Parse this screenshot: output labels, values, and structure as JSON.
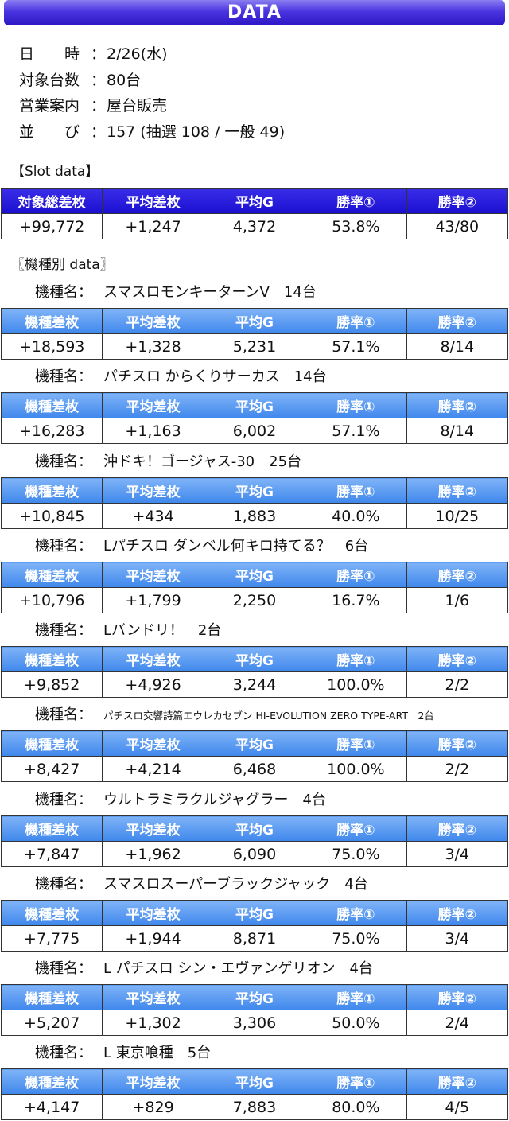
{
  "header": {
    "title": "DATA"
  },
  "info": [
    {
      "key": "日　　時",
      "value": "2/26(水)"
    },
    {
      "key": "対象台数",
      "value": "80台"
    },
    {
      "key": "営業案内",
      "value": "屋台販売"
    },
    {
      "key": "並　　び",
      "value": "157 (抽選 108 / 一般 49)"
    }
  ],
  "colon": "：",
  "slot_section": "【Slot data】",
  "slot_headers": [
    "対象総差枚",
    "平均差枚",
    "平均G",
    "勝率①",
    "勝率②"
  ],
  "slot_values": [
    "+99,772",
    "+1,247",
    "4,372",
    "53.8%",
    "43/80"
  ],
  "model_section": "〖機種別 data〗",
  "model_label": "機種名：",
  "model_headers": [
    "機種差枚",
    "平均差枚",
    "平均G",
    "勝率①",
    "勝率②"
  ],
  "models": [
    {
      "name": "スマスロモンキーターンV　14台",
      "values": [
        "+18,593",
        "+1,328",
        "5,231",
        "57.1%",
        "8/14"
      ]
    },
    {
      "name": "パチスロ からくりサーカス　14台",
      "values": [
        "+16,283",
        "+1,163",
        "6,002",
        "57.1%",
        "8/14"
      ]
    },
    {
      "name": "沖ドキ！ゴージャス-30　25台",
      "values": [
        "+10,845",
        "+434",
        "1,883",
        "40.0%",
        "10/25"
      ]
    },
    {
      "name": "Lパチスロ ダンベル何キロ持てる？　6台",
      "values": [
        "+10,796",
        "+1,799",
        "2,250",
        "16.7%",
        "1/6"
      ]
    },
    {
      "name": "Lバンドリ！　2台",
      "values": [
        "+9,852",
        "+4,926",
        "3,244",
        "100.0%",
        "2/2"
      ]
    },
    {
      "name": "パチスロ交響詩篇エウレカセブン HI-EVOLUTION ZERO TYPE-ART　2台",
      "values": [
        "+8,427",
        "+4,214",
        "6,468",
        "100.0%",
        "2/2"
      ]
    },
    {
      "name": "ウルトラミラクルジャグラー　4台",
      "values": [
        "+7,847",
        "+1,962",
        "6,090",
        "75.0%",
        "3/4"
      ]
    },
    {
      "name": "スマスロスーパーブラックジャック　4台",
      "values": [
        "+7,775",
        "+1,944",
        "8,871",
        "75.0%",
        "3/4"
      ]
    },
    {
      "name": "L パチスロ シン・エヴァンゲリオン　4台",
      "values": [
        "+5,207",
        "+1,302",
        "3,306",
        "50.0%",
        "2/4"
      ]
    },
    {
      "name": "L 東京喰種　5台",
      "values": [
        "+4,147",
        "+829",
        "7,883",
        "80.0%",
        "4/5"
      ]
    }
  ]
}
